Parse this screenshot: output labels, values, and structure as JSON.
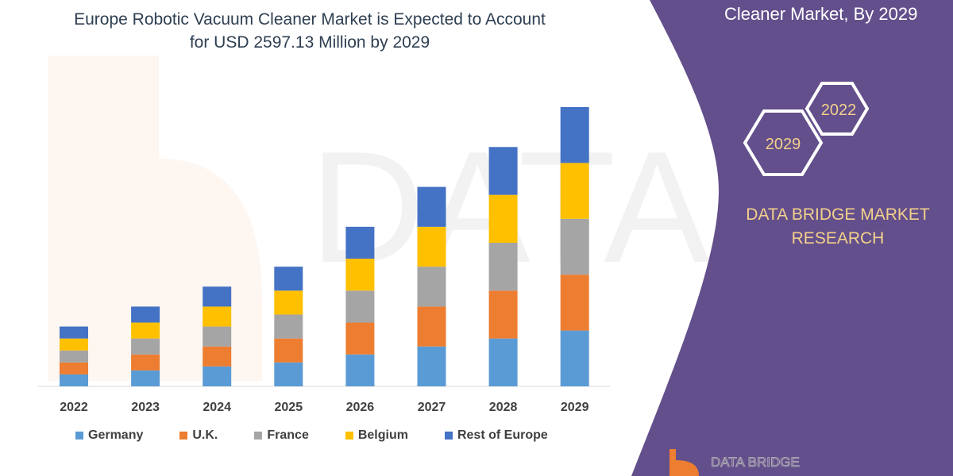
{
  "title_line1": "Europe Robotic Vacuum Cleaner Market is Expected to Account",
  "title_line2": "for USD 2597.13 Million by 2029",
  "panel": {
    "heading_visible": "Cleaner Market, By 2029",
    "hex_years": [
      "2022",
      "2029"
    ],
    "brand_line1": "DATA BRIDGE MARKET",
    "brand_line2": "RESEARCH",
    "logo_text": "DATA BRIDGE",
    "background": "#634f8b",
    "text_accent": "#f3d08c"
  },
  "chart_data": {
    "type": "bar",
    "stacked": true,
    "title": "Europe Robotic Vacuum Cleaner Market is Expected to Account for USD 2597.13 Million by 2029",
    "categories": [
      "2022",
      "2023",
      "2024",
      "2025",
      "2026",
      "2027",
      "2028",
      "2029"
    ],
    "series": [
      {
        "name": "Germany",
        "color": "#5b9bd5",
        "values": [
          15,
          20,
          25,
          30,
          40,
          50,
          60,
          70
        ]
      },
      {
        "name": "U.K.",
        "color": "#ed7d31",
        "values": [
          15,
          20,
          25,
          30,
          40,
          50,
          60,
          70
        ]
      },
      {
        "name": "France",
        "color": "#a5a5a5",
        "values": [
          15,
          20,
          25,
          30,
          40,
          50,
          60,
          70
        ]
      },
      {
        "name": "Belgium",
        "color": "#ffc000",
        "values": [
          15,
          20,
          25,
          30,
          40,
          50,
          60,
          70
        ]
      },
      {
        "name": "Rest of Europe",
        "color": "#4472c4",
        "values": [
          15,
          20,
          25,
          30,
          40,
          50,
          60,
          70
        ]
      }
    ],
    "ylim": [
      0,
      350
    ],
    "y_axis_shown": false,
    "grid": false,
    "legend": "bottom"
  }
}
